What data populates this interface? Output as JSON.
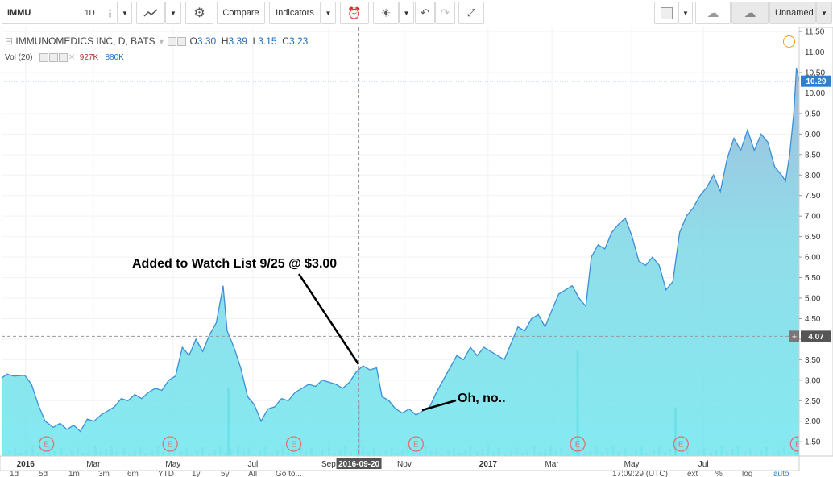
{
  "toolbar": {
    "symbol": "IMMU",
    "interval": "1D",
    "compare_label": "Compare",
    "indicators_label": "Indicators",
    "layout_label": "Unnamed"
  },
  "legend": {
    "title": "IMMUNOMEDICS INC, D, BATS",
    "o_label": "O",
    "o_value": "3.30",
    "h_label": "H",
    "h_value": "3.39",
    "l_label": "L",
    "l_value": "3.15",
    "c_label": "C",
    "c_value": "3.23",
    "vol_label": "Vol (20)",
    "vol_value": "927K",
    "vol_ma_value": "880K"
  },
  "colors": {
    "line": "#3b8fd6",
    "area": "#6fe6ee",
    "area_top": "#8fb2d6",
    "price_badge": "#2f7fd0",
    "crosshair_badge": "#555555",
    "annotation": "#000000",
    "event": "#e07070"
  },
  "annotations": {
    "watch": "Added to Watch List 9/25 @ $3.00",
    "oh_no": "Oh, no.."
  },
  "badges": {
    "last_price": "10.29",
    "crosshair_price": "4.07",
    "crosshair_date": "2016-09-20"
  },
  "event_marker_label": "E",
  "bottom": {
    "periods": [
      "1d",
      "5d",
      "1m",
      "3m",
      "6m",
      "YTD",
      "1y",
      "5y",
      "All"
    ],
    "goto": "Go to...",
    "time": "17:09:29 (UTC)",
    "toggles": [
      "ext",
      "%",
      "log",
      "auto"
    ]
  },
  "chart_data": {
    "type": "area",
    "title": "",
    "xlabel": "",
    "ylabel": "",
    "ylim": [
      1.15,
      11.6
    ],
    "y_ticks": [
      "1.50",
      "2.00",
      "2.50",
      "3.00",
      "3.50",
      "4.00",
      "4.50",
      "5.00",
      "5.50",
      "6.00",
      "6.50",
      "7.00",
      "7.50",
      "8.00",
      "8.50",
      "9.00",
      "9.50",
      "10.00",
      "10.50",
      "11.00",
      "11.50"
    ],
    "x_ticks": [
      "2016",
      "Mar",
      "May",
      "Jul",
      "Sep",
      "Nov",
      "2017",
      "Mar",
      "May",
      "Jul"
    ],
    "x_tick_pos": [
      0.03,
      0.115,
      0.215,
      0.315,
      0.41,
      0.505,
      0.61,
      0.69,
      0.79,
      0.88
    ],
    "x_range": [
      "2016-01-01",
      "2017-08-10"
    ],
    "series": [
      {
        "values": [
          [
            "2016-01-01",
            3.05
          ],
          [
            "2016-01-05",
            3.15
          ],
          [
            "2016-01-10",
            3.1
          ],
          [
            "2016-01-18",
            3.12
          ],
          [
            "2016-01-23",
            2.9
          ],
          [
            "2016-01-28",
            2.4
          ],
          [
            "2016-02-02",
            2.0
          ],
          [
            "2016-02-08",
            1.85
          ],
          [
            "2016-02-13",
            1.95
          ],
          [
            "2016-02-18",
            1.8
          ],
          [
            "2016-02-23",
            1.9
          ],
          [
            "2016-02-28",
            1.75
          ],
          [
            "2016-03-04",
            2.05
          ],
          [
            "2016-03-09",
            2.0
          ],
          [
            "2016-03-14",
            2.15
          ],
          [
            "2016-03-19",
            2.25
          ],
          [
            "2016-03-24",
            2.35
          ],
          [
            "2016-03-29",
            2.55
          ],
          [
            "2016-04-03",
            2.5
          ],
          [
            "2016-04-08",
            2.65
          ],
          [
            "2016-04-13",
            2.55
          ],
          [
            "2016-04-18",
            2.7
          ],
          [
            "2016-04-23",
            2.8
          ],
          [
            "2016-04-28",
            2.75
          ],
          [
            "2016-05-03",
            3.0
          ],
          [
            "2016-05-08",
            3.1
          ],
          [
            "2016-05-13",
            3.8
          ],
          [
            "2016-05-18",
            3.6
          ],
          [
            "2016-05-23",
            4.0
          ],
          [
            "2016-05-28",
            3.7
          ],
          [
            "2016-06-02",
            4.1
          ],
          [
            "2016-06-07",
            4.4
          ],
          [
            "2016-06-12",
            5.3
          ],
          [
            "2016-06-15",
            4.2
          ],
          [
            "2016-06-20",
            3.8
          ],
          [
            "2016-06-25",
            3.3
          ],
          [
            "2016-06-30",
            2.6
          ],
          [
            "2016-07-05",
            2.4
          ],
          [
            "2016-07-10",
            2.0
          ],
          [
            "2016-07-15",
            2.3
          ],
          [
            "2016-07-20",
            2.35
          ],
          [
            "2016-07-25",
            2.55
          ],
          [
            "2016-07-30",
            2.5
          ],
          [
            "2016-08-04",
            2.7
          ],
          [
            "2016-08-09",
            2.8
          ],
          [
            "2016-08-14",
            2.9
          ],
          [
            "2016-08-19",
            2.85
          ],
          [
            "2016-08-24",
            3.0
          ],
          [
            "2016-08-29",
            2.95
          ],
          [
            "2016-09-03",
            2.9
          ],
          [
            "2016-09-08",
            2.8
          ],
          [
            "2016-09-13",
            2.95
          ],
          [
            "2016-09-18",
            3.2
          ],
          [
            "2016-09-23",
            3.35
          ],
          [
            "2016-09-28",
            3.25
          ],
          [
            "2016-10-03",
            3.3
          ],
          [
            "2016-10-07",
            2.6
          ],
          [
            "2016-10-12",
            2.5
          ],
          [
            "2016-10-17",
            2.3
          ],
          [
            "2016-10-22",
            2.2
          ],
          [
            "2016-10-27",
            2.3
          ],
          [
            "2016-11-01",
            2.15
          ],
          [
            "2016-11-06",
            2.25
          ],
          [
            "2016-11-11",
            2.35
          ],
          [
            "2016-11-16",
            2.7
          ],
          [
            "2016-11-21",
            3.0
          ],
          [
            "2016-11-26",
            3.3
          ],
          [
            "2016-12-01",
            3.6
          ],
          [
            "2016-12-06",
            3.5
          ],
          [
            "2016-12-11",
            3.8
          ],
          [
            "2016-12-16",
            3.6
          ],
          [
            "2016-12-21",
            3.8
          ],
          [
            "2016-12-26",
            3.7
          ],
          [
            "2016-12-31",
            3.6
          ],
          [
            "2017-01-05",
            3.5
          ],
          [
            "2017-01-10",
            3.9
          ],
          [
            "2017-01-15",
            4.3
          ],
          [
            "2017-01-20",
            4.2
          ],
          [
            "2017-01-25",
            4.5
          ],
          [
            "2017-01-30",
            4.6
          ],
          [
            "2017-02-04",
            4.3
          ],
          [
            "2017-02-09",
            4.7
          ],
          [
            "2017-02-14",
            5.1
          ],
          [
            "2017-02-19",
            5.2
          ],
          [
            "2017-02-24",
            5.3
          ],
          [
            "2017-03-01",
            5.0
          ],
          [
            "2017-03-06",
            4.8
          ],
          [
            "2017-03-10",
            6.0
          ],
          [
            "2017-03-15",
            6.3
          ],
          [
            "2017-03-20",
            6.2
          ],
          [
            "2017-03-25",
            6.6
          ],
          [
            "2017-03-30",
            6.8
          ],
          [
            "2017-04-04",
            6.95
          ],
          [
            "2017-04-09",
            6.5
          ],
          [
            "2017-04-14",
            5.9
          ],
          [
            "2017-04-19",
            5.8
          ],
          [
            "2017-04-24",
            6.0
          ],
          [
            "2017-04-29",
            5.8
          ],
          [
            "2017-05-04",
            5.2
          ],
          [
            "2017-05-09",
            5.4
          ],
          [
            "2017-05-14",
            6.6
          ],
          [
            "2017-05-19",
            7.0
          ],
          [
            "2017-05-24",
            7.2
          ],
          [
            "2017-05-29",
            7.5
          ],
          [
            "2017-06-03",
            7.7
          ],
          [
            "2017-06-08",
            8.0
          ],
          [
            "2017-06-13",
            7.6
          ],
          [
            "2017-06-18",
            8.4
          ],
          [
            "2017-06-23",
            8.9
          ],
          [
            "2017-06-28",
            8.6
          ],
          [
            "2017-07-03",
            9.1
          ],
          [
            "2017-07-08",
            8.6
          ],
          [
            "2017-07-13",
            9.0
          ],
          [
            "2017-07-18",
            8.8
          ],
          [
            "2017-07-23",
            8.2
          ],
          [
            "2017-07-28",
            8.0
          ],
          [
            "2017-07-31",
            7.85
          ],
          [
            "2017-08-03",
            8.5
          ],
          [
            "2017-08-06",
            9.5
          ],
          [
            "2017-08-08",
            10.6
          ],
          [
            "2017-08-10",
            10.29
          ]
        ]
      }
    ],
    "volume_spikes": [
      [
        "2016-06-16",
        0.35
      ],
      [
        "2016-09-20",
        0.28
      ],
      [
        "2017-02-28",
        0.55
      ],
      [
        "2017-05-11",
        0.25
      ],
      [
        "2017-08-09",
        0.1
      ]
    ],
    "event_dates": [
      "2016-02-03",
      "2016-05-04",
      "2016-08-03",
      "2016-11-01",
      "2017-02-28",
      "2017-05-15",
      "2017-08-09"
    ],
    "crosshair_date": "2016-09-20",
    "crosshair_price": 4.07,
    "last_price": 10.29
  }
}
